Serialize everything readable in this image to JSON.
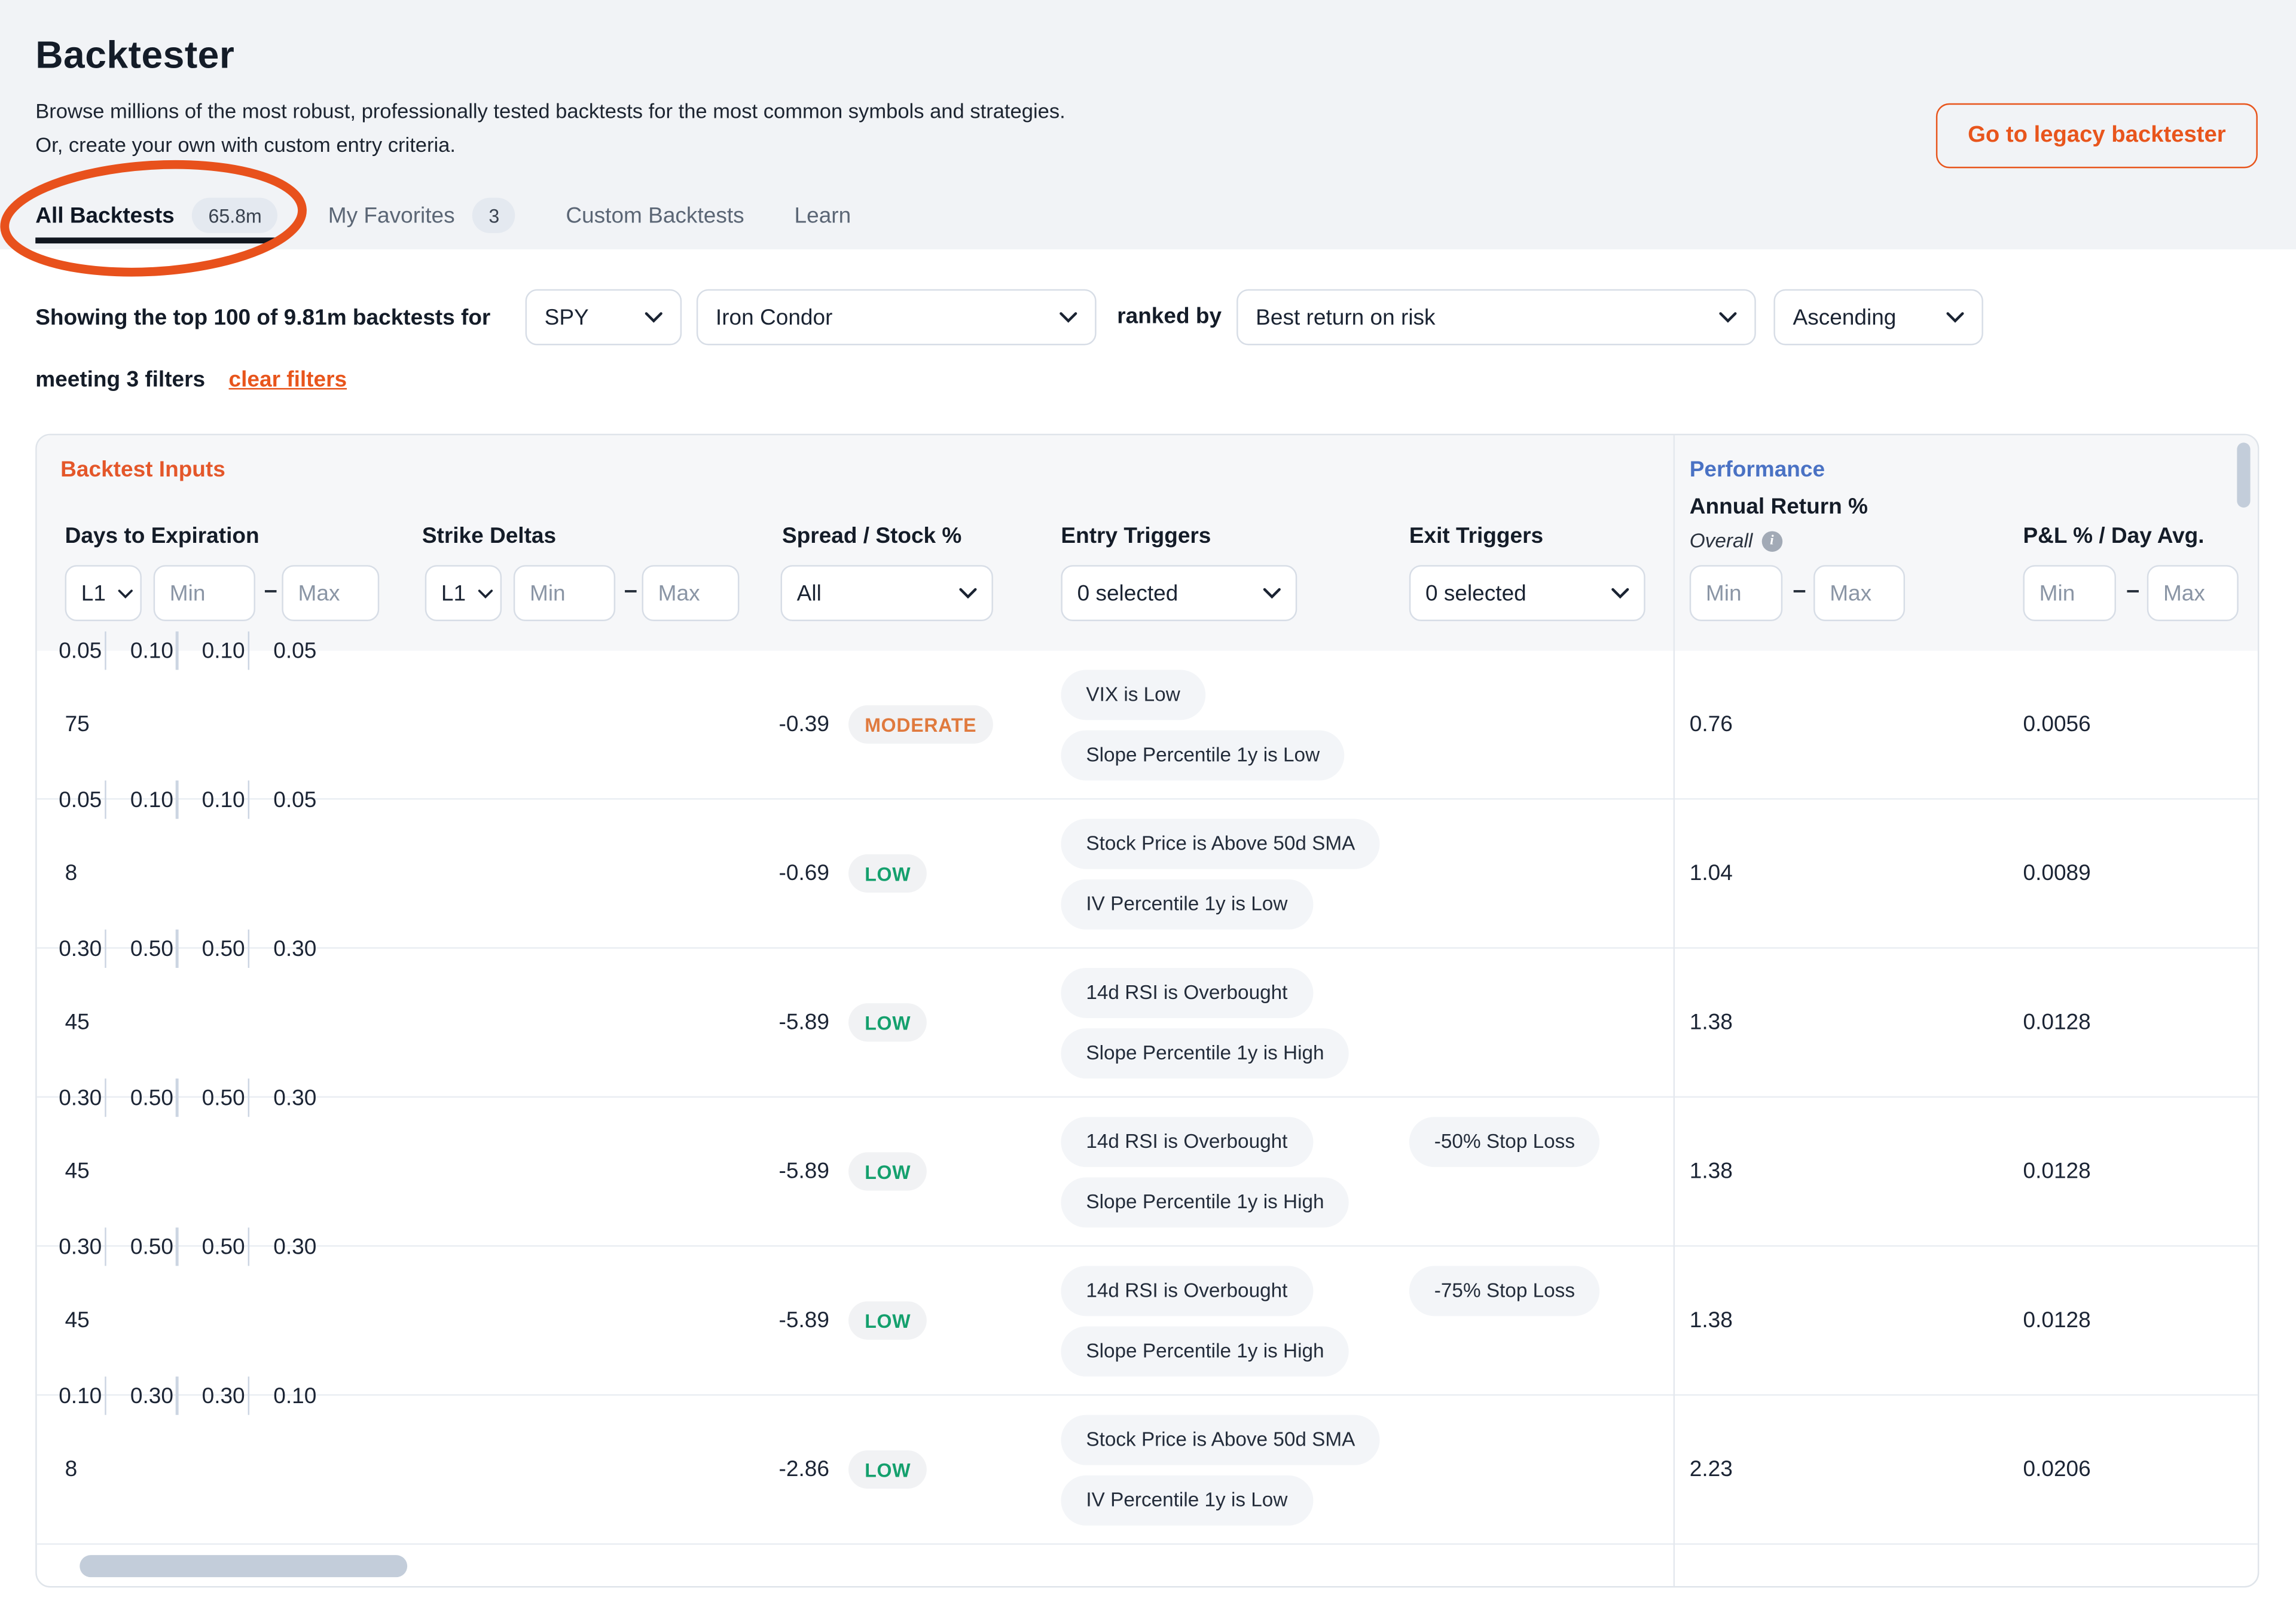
{
  "colors": {
    "brand_orange": "#e8551c",
    "annotation_orange": "#e8511c",
    "performance_blue": "#4a72c4",
    "risk_moderate": "#e07a3e",
    "risk_low": "#14a06d"
  },
  "header": {
    "title": "Backtester",
    "subtitle1": "Browse millions of the most robust, professionally tested backtests for the most common symbols and strategies.",
    "subtitle2": "Or, create your own with custom entry criteria.",
    "legacy_button_label": "Go to legacy backtester"
  },
  "tabs": [
    {
      "id": "all-backtests",
      "label": "All Backtests",
      "badge": "65.8m",
      "active": true
    },
    {
      "id": "my-favorites",
      "label": "My Favorites",
      "badge": "3",
      "active": false
    },
    {
      "id": "custom-backtests",
      "label": "Custom Backtests",
      "badge": null,
      "active": false
    },
    {
      "id": "learn",
      "label": "Learn",
      "badge": null,
      "active": false
    }
  ],
  "annotation": {
    "shape": "hand-drawn-ellipse",
    "circled_tab": "All Backtests",
    "color": "#e8511c"
  },
  "filter_bar": {
    "prefix": "Showing the top 100 of 9.81m backtests for",
    "symbol_value": "SPY",
    "strategy_value": "Iron Condor",
    "ranked_by_label": "ranked by",
    "metric_value": "Best return on risk",
    "direction_value": "Ascending",
    "meeting_label": "meeting 3 filters",
    "clear_filters_label": "clear filters"
  },
  "table": {
    "inputs_section_label": "Backtest Inputs",
    "performance_section_label": "Performance",
    "columns": {
      "dte": "Days to Expiration",
      "strike_deltas": "Strike Deltas",
      "spread_stock": "Spread / Stock %",
      "entry_triggers": "Entry Triggers",
      "exit_triggers": "Exit Triggers",
      "annual_return": "Annual Return %",
      "annual_return_sub": "Overall",
      "pnl_day_avg": "P&L % / Day Avg."
    },
    "filters": {
      "dte_leg_value": "L1",
      "strike_leg_value": "L1",
      "min_placeholder": "Min",
      "max_placeholder": "Max",
      "spread_value": "All",
      "entry_value": "0 selected",
      "exit_value": "0 selected"
    },
    "rows": [
      {
        "dte": "75",
        "strike_deltas": [
          "0.05",
          "0.10",
          "0.10",
          "0.05"
        ],
        "spread_stock": "-0.39",
        "risk": "MODERATE",
        "entry_triggers": [
          "VIX is Low",
          "Slope Percentile 1y is Low"
        ],
        "exit_triggers": [],
        "annual_return": "0.76",
        "pnl_day_avg": "0.0056"
      },
      {
        "dte": "8",
        "strike_deltas": [
          "0.05",
          "0.10",
          "0.10",
          "0.05"
        ],
        "spread_stock": "-0.69",
        "risk": "LOW",
        "entry_triggers": [
          "Stock Price is Above 50d SMA",
          "IV Percentile 1y is Low"
        ],
        "exit_triggers": [],
        "annual_return": "1.04",
        "pnl_day_avg": "0.0089"
      },
      {
        "dte": "45",
        "strike_deltas": [
          "0.30",
          "0.50",
          "0.50",
          "0.30"
        ],
        "spread_stock": "-5.89",
        "risk": "LOW",
        "entry_triggers": [
          "14d RSI is Overbought",
          "Slope Percentile 1y is High"
        ],
        "exit_triggers": [],
        "annual_return": "1.38",
        "pnl_day_avg": "0.0128"
      },
      {
        "dte": "45",
        "strike_deltas": [
          "0.30",
          "0.50",
          "0.50",
          "0.30"
        ],
        "spread_stock": "-5.89",
        "risk": "LOW",
        "entry_triggers": [
          "14d RSI is Overbought",
          "Slope Percentile 1y is High"
        ],
        "exit_triggers": [
          "-50% Stop Loss"
        ],
        "annual_return": "1.38",
        "pnl_day_avg": "0.0128"
      },
      {
        "dte": "45",
        "strike_deltas": [
          "0.30",
          "0.50",
          "0.50",
          "0.30"
        ],
        "spread_stock": "-5.89",
        "risk": "LOW",
        "entry_triggers": [
          "14d RSI is Overbought",
          "Slope Percentile 1y is High"
        ],
        "exit_triggers": [
          "-75% Stop Loss"
        ],
        "annual_return": "1.38",
        "pnl_day_avg": "0.0128"
      },
      {
        "dte": "8",
        "strike_deltas": [
          "0.10",
          "0.30",
          "0.30",
          "0.10"
        ],
        "spread_stock": "-2.86",
        "risk": "LOW",
        "entry_triggers": [
          "Stock Price is Above 50d SMA",
          "IV Percentile 1y is Low"
        ],
        "exit_triggers": [],
        "annual_return": "2.23",
        "pnl_day_avg": "0.0206"
      }
    ]
  }
}
